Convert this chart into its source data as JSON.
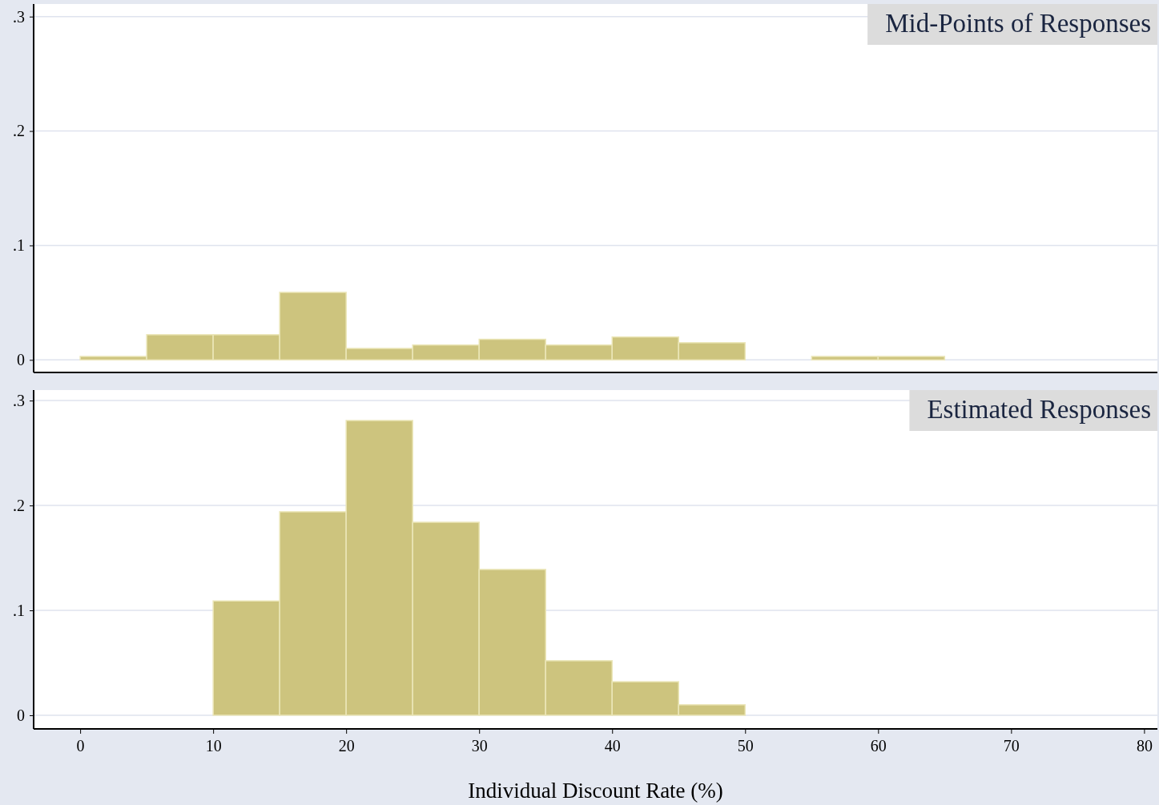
{
  "chart_data": [
    {
      "type": "histogram",
      "title": "Mid-Points of Responses",
      "bins": [
        0,
        5,
        10,
        15,
        20,
        25,
        30,
        35,
        40,
        45,
        50,
        55,
        60,
        65
      ],
      "values": [
        0.003,
        0.022,
        0.022,
        0.059,
        0.01,
        0.013,
        0.018,
        0.013,
        0.02,
        0.015,
        0,
        0.003,
        0.003
      ],
      "color": "#cdc47e",
      "xlim": [
        -3.5,
        81
      ],
      "ylim": [
        -0.011,
        0.311
      ],
      "yticks": [
        {
          "value": 0,
          "label": "0"
        },
        {
          "value": 0.1,
          "label": ".1"
        },
        {
          "value": 0.2,
          "label": ".2"
        },
        {
          "value": 0.3,
          "label": ".3"
        }
      ],
      "grid": "y",
      "tick_labels": "y"
    },
    {
      "type": "histogram",
      "title": "Estimated Responses",
      "xlabel": "Individual Discount Rate (%)",
      "bins": [
        10,
        15,
        20,
        25,
        30,
        35,
        40,
        45,
        50
      ],
      "values": [
        0.109,
        0.194,
        0.281,
        0.184,
        0.139,
        0.052,
        0.032,
        0.01
      ],
      "color": "#cdc47e",
      "xlim": [
        -3.5,
        81
      ],
      "ylim": [
        -0.013,
        0.31
      ],
      "xticks": [
        0,
        10,
        20,
        30,
        40,
        50,
        60,
        70,
        80
      ],
      "yticks": [
        {
          "value": 0,
          "label": "0"
        },
        {
          "value": 0.1,
          "label": ".1"
        },
        {
          "value": 0.2,
          "label": ".2"
        },
        {
          "value": 0.3,
          "label": ".3"
        }
      ],
      "grid": "y"
    }
  ]
}
